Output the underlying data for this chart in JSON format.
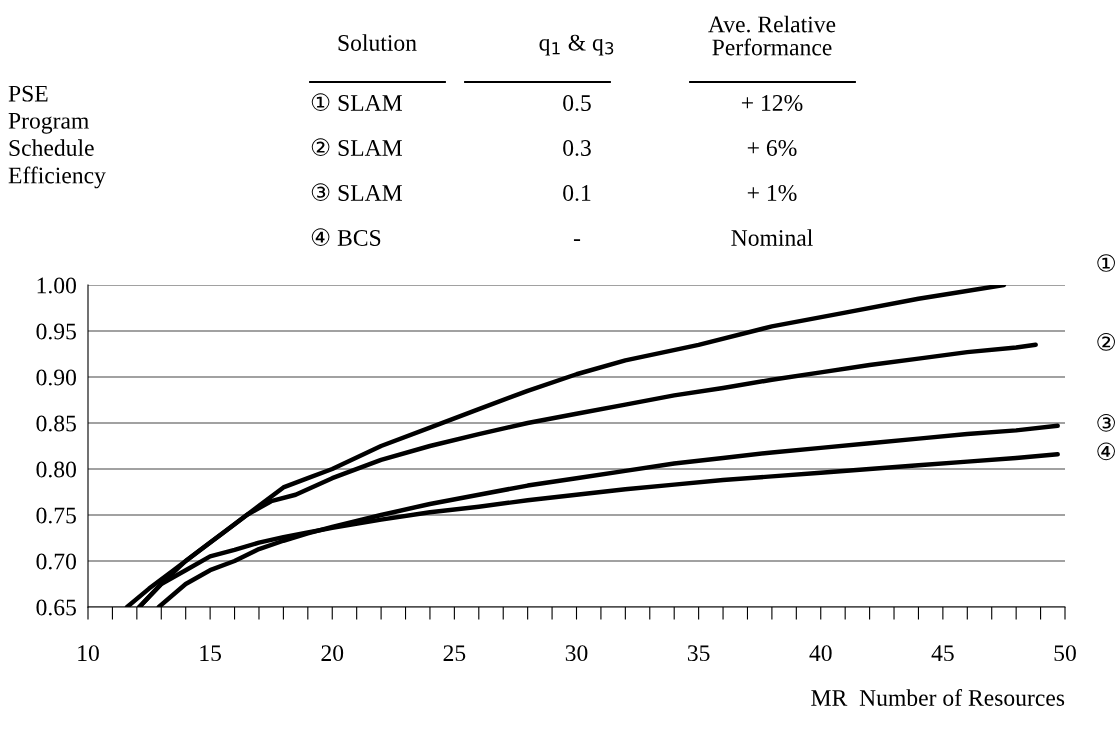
{
  "chart_data": {
    "type": "line",
    "ylabel": "PSE\nProgram\nSchedule\nEfficiency",
    "xlabel": "MR  Number of Resources",
    "annotations": [
      "Solution",
      "q$_{1}$ & q$_{3}$",
      "Ave. Relative\nPerformance",
      "① SLAM",
      "0.5",
      "+ 12%",
      "② SLAM",
      "0.3",
      "+ 6%",
      "③ SLAM",
      "0.1",
      "+ 1%",
      "④ BCS",
      "-",
      "Nominal"
    ],
    "series": [
      {
        "name": "①",
        "color": "#000000",
        "x": [
          12.1,
          13,
          14,
          15,
          16,
          17,
          18,
          19,
          20,
          22,
          24,
          26,
          28,
          30,
          32,
          35,
          38,
          41,
          44,
          47.5
        ],
        "values": [
          0.65,
          0.675,
          0.7,
          0.72,
          0.74,
          0.76,
          0.78,
          0.79,
          0.8,
          0.825,
          0.845,
          0.865,
          0.885,
          0.903,
          0.918,
          0.935,
          0.955,
          0.97,
          0.985,
          1.0
        ]
      },
      {
        "name": "②",
        "color": "#000000",
        "x": [
          11.6,
          12.5,
          13.5,
          14.5,
          15.5,
          16.5,
          17.5,
          18.5,
          20,
          22,
          24,
          26,
          28,
          30,
          32,
          34,
          36,
          38,
          40,
          42,
          44,
          46,
          48,
          48.8
        ],
        "values": [
          0.65,
          0.67,
          0.69,
          0.71,
          0.73,
          0.75,
          0.765,
          0.772,
          0.79,
          0.81,
          0.825,
          0.838,
          0.85,
          0.86,
          0.87,
          0.88,
          0.888,
          0.897,
          0.905,
          0.913,
          0.92,
          0.927,
          0.932,
          0.935
        ]
      },
      {
        "name": "③",
        "color": "#000000",
        "x": [
          12.9,
          14,
          15,
          16,
          17,
          18,
          19,
          20,
          22,
          24,
          26,
          28,
          30,
          32,
          34,
          36,
          38,
          40,
          42,
          44,
          46,
          48,
          49.7
        ],
        "values": [
          0.65,
          0.675,
          0.69,
          0.7,
          0.713,
          0.722,
          0.73,
          0.737,
          0.75,
          0.762,
          0.772,
          0.782,
          0.79,
          0.798,
          0.806,
          0.812,
          0.818,
          0.823,
          0.828,
          0.833,
          0.838,
          0.842,
          0.847
        ]
      },
      {
        "name": "④",
        "color": "#000000",
        "x": [
          12.1,
          13,
          14,
          15,
          16,
          17,
          18,
          19,
          20,
          22,
          24,
          26,
          28,
          30,
          32,
          34,
          36,
          38,
          40,
          42,
          44,
          46,
          48,
          49.7
        ],
        "values": [
          0.65,
          0.675,
          0.69,
          0.705,
          0.712,
          0.72,
          0.726,
          0.731,
          0.736,
          0.745,
          0.753,
          0.759,
          0.766,
          0.772,
          0.778,
          0.783,
          0.788,
          0.792,
          0.796,
          0.8,
          0.804,
          0.808,
          0.812,
          0.816
        ]
      }
    ],
    "xlim": [
      10,
      50
    ],
    "xticks": [
      10,
      {
        "value": 11,
        "label": null
      },
      {
        "value": 12,
        "label": null
      },
      {
        "value": 13,
        "label": null
      },
      {
        "value": 14,
        "label": null
      },
      15,
      {
        "value": 16,
        "label": null
      },
      {
        "value": 17,
        "label": null
      },
      {
        "value": 18,
        "label": null
      },
      {
        "value": 19,
        "label": null
      },
      20,
      {
        "value": 21,
        "label": null
      },
      {
        "value": 22,
        "label": null
      },
      {
        "value": 23,
        "label": null
      },
      {
        "value": 24,
        "label": null
      },
      25,
      {
        "value": 26,
        "label": null
      },
      {
        "value": 27,
        "label": null
      },
      {
        "value": 28,
        "label": null
      },
      {
        "value": 29,
        "label": null
      },
      30,
      {
        "value": 31,
        "label": null
      },
      {
        "value": 32,
        "label": null
      },
      {
        "value": 33,
        "label": null
      },
      {
        "value": 34,
        "label": null
      },
      35,
      {
        "value": 36,
        "label": null
      },
      {
        "value": 37,
        "label": null
      },
      {
        "value": 38,
        "label": null
      },
      {
        "value": 39,
        "label": null
      },
      40,
      {
        "value": 41,
        "label": null
      },
      {
        "value": 42,
        "label": null
      },
      {
        "value": 43,
        "label": null
      },
      {
        "value": 44,
        "label": null
      },
      45,
      {
        "value": 46,
        "label": null
      },
      {
        "value": 47,
        "label": null
      },
      {
        "value": 48,
        "label": null
      },
      {
        "value": 49,
        "label": null
      },
      50
    ],
    "ylim": [
      0.65,
      1.0
    ],
    "yticks": [
      {
        "value": 0.65,
        "label": "0.65"
      },
      {
        "value": 0.7,
        "label": "0.70"
      },
      {
        "value": 0.75,
        "label": "0.75"
      },
      {
        "value": 0.8,
        "label": "0.80"
      },
      {
        "value": 0.85,
        "label": "0.85"
      },
      {
        "value": 0.9,
        "label": "0.90"
      },
      {
        "value": 0.95,
        "label": "0.95"
      },
      {
        "value": 1.0,
        "label": "1.00"
      }
    ],
    "grid": "y",
    "legend": false,
    "marker": "none",
    "line_style": "solid"
  }
}
